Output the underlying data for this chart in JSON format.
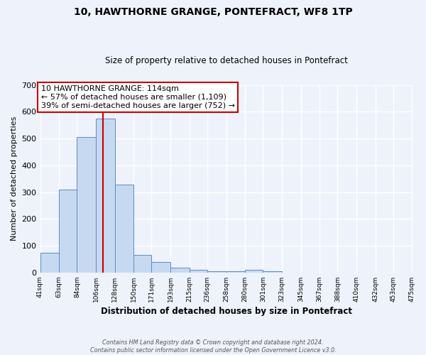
{
  "title": "10, HAWTHORNE GRANGE, PONTEFRACT, WF8 1TP",
  "subtitle": "Size of property relative to detached houses in Pontefract",
  "xlabel": "Distribution of detached houses by size in Pontefract",
  "ylabel": "Number of detached properties",
  "bin_edges": [
    41,
    63,
    84,
    106,
    128,
    150,
    171,
    193,
    215,
    236,
    258,
    280,
    301,
    323,
    345,
    367,
    388,
    410,
    432,
    453,
    475
  ],
  "bar_heights": [
    75,
    310,
    505,
    575,
    328,
    65,
    38,
    18,
    10,
    5,
    5,
    10,
    6,
    0,
    0,
    0,
    0,
    0,
    0,
    0
  ],
  "bar_color": "#c6d9f0",
  "bar_edgecolor": "#5b8bc9",
  "property_line_x": 114,
  "property_line_color": "#cc0000",
  "annotation_title": "10 HAWTHORNE GRANGE: 114sqm",
  "annotation_line1": "← 57% of detached houses are smaller (1,109)",
  "annotation_line2": "39% of semi-detached houses are larger (752) →",
  "annotation_box_color": "#cc0000",
  "ylim": [
    0,
    700
  ],
  "yticks": [
    0,
    100,
    200,
    300,
    400,
    500,
    600,
    700
  ],
  "footer_line1": "Contains HM Land Registry data © Crown copyright and database right 2024.",
  "footer_line2": "Contains public sector information licensed under the Open Government Licence v3.0.",
  "background_color": "#eef2fa",
  "grid_color": "#ffffff"
}
